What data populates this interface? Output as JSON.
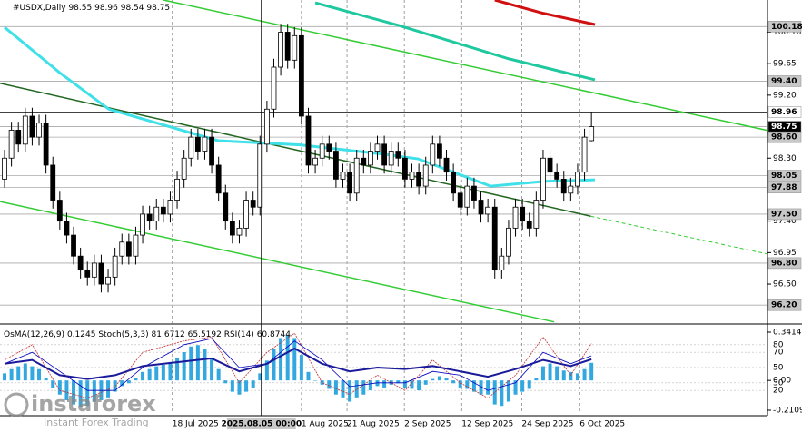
{
  "chart_data": {
    "type": "candlestick",
    "title": "#USDX,Daily",
    "candles": [
      [
        98.0,
        98.42,
        97.88,
        98.3
      ],
      [
        98.3,
        98.82,
        98.18,
        98.7
      ],
      [
        98.7,
        98.82,
        98.38,
        98.5
      ],
      [
        98.5,
        99.02,
        98.38,
        98.9
      ],
      [
        98.9,
        99.02,
        98.48,
        98.6
      ],
      [
        98.6,
        98.92,
        98.48,
        98.8
      ],
      [
        98.8,
        98.92,
        98.08,
        98.2
      ],
      [
        98.2,
        98.32,
        97.58,
        97.7
      ],
      [
        97.7,
        97.82,
        97.28,
        97.4
      ],
      [
        97.4,
        97.52,
        97.08,
        97.2
      ],
      [
        97.2,
        97.32,
        96.78,
        96.9
      ],
      [
        96.9,
        97.02,
        96.58,
        96.7
      ],
      [
        96.7,
        96.82,
        96.48,
        96.6
      ],
      [
        96.6,
        96.92,
        96.48,
        96.8
      ],
      [
        96.8,
        96.92,
        96.38,
        96.5
      ],
      [
        96.5,
        96.72,
        96.38,
        96.6
      ],
      [
        96.6,
        97.02,
        96.48,
        96.9
      ],
      [
        96.9,
        97.22,
        96.78,
        97.1
      ],
      [
        97.1,
        97.22,
        96.78,
        96.9
      ],
      [
        96.9,
        97.32,
        96.78,
        97.2
      ],
      [
        97.2,
        97.62,
        97.08,
        97.5
      ],
      [
        97.5,
        97.62,
        97.28,
        97.4
      ],
      [
        97.4,
        97.72,
        97.28,
        97.6
      ],
      [
        97.6,
        97.72,
        97.38,
        97.5
      ],
      [
        97.5,
        97.82,
        97.38,
        97.7
      ],
      [
        97.7,
        98.12,
        97.58,
        98.0
      ],
      [
        98.0,
        98.42,
        97.88,
        98.3
      ],
      [
        98.3,
        98.72,
        98.18,
        98.6
      ],
      [
        98.6,
        98.72,
        98.28,
        98.4
      ],
      [
        98.4,
        98.72,
        98.28,
        98.6
      ],
      [
        98.6,
        98.72,
        98.08,
        98.2
      ],
      [
        98.2,
        98.32,
        97.68,
        97.8
      ],
      [
        97.8,
        97.92,
        97.28,
        97.4
      ],
      [
        97.4,
        97.52,
        97.08,
        97.2
      ],
      [
        97.2,
        97.42,
        97.08,
        97.3
      ],
      [
        97.3,
        97.82,
        97.18,
        97.7
      ],
      [
        97.7,
        97.82,
        97.48,
        97.6
      ],
      [
        97.6,
        98.62,
        97.48,
        98.5
      ],
      [
        98.5,
        99.12,
        98.38,
        99.0
      ],
      [
        99.0,
        99.72,
        98.88,
        99.6
      ],
      [
        99.6,
        100.22,
        99.48,
        100.1
      ],
      [
        100.1,
        100.22,
        99.58,
        99.7
      ],
      [
        99.7,
        100.17,
        99.58,
        100.05
      ],
      [
        100.05,
        100.17,
        98.78,
        98.9
      ],
      [
        98.9,
        99.02,
        98.08,
        98.2
      ],
      [
        98.2,
        98.42,
        98.08,
        98.3
      ],
      [
        98.3,
        98.62,
        98.18,
        98.5
      ],
      [
        98.5,
        98.62,
        98.28,
        98.4
      ],
      [
        98.4,
        98.52,
        97.88,
        98.0
      ],
      [
        98.0,
        98.22,
        97.88,
        98.1
      ],
      [
        98.1,
        98.22,
        97.68,
        97.8
      ],
      [
        97.8,
        98.42,
        97.68,
        98.3
      ],
      [
        98.3,
        98.42,
        98.08,
        98.2
      ],
      [
        98.2,
        98.52,
        98.08,
        98.4
      ],
      [
        98.4,
        98.62,
        98.28,
        98.5
      ],
      [
        98.5,
        98.62,
        98.08,
        98.2
      ],
      [
        98.2,
        98.52,
        98.08,
        98.4
      ],
      [
        98.4,
        98.52,
        98.18,
        98.3
      ],
      [
        98.3,
        98.42,
        97.88,
        98.0
      ],
      [
        98.0,
        98.22,
        97.88,
        98.1
      ],
      [
        98.1,
        98.22,
        97.78,
        97.9
      ],
      [
        97.9,
        98.32,
        97.78,
        98.2
      ],
      [
        98.2,
        98.62,
        98.08,
        98.5
      ],
      [
        98.5,
        98.62,
        98.18,
        98.3
      ],
      [
        98.3,
        98.42,
        97.98,
        98.1
      ],
      [
        98.1,
        98.22,
        97.68,
        97.8
      ],
      [
        97.8,
        97.92,
        97.48,
        97.6
      ],
      [
        97.6,
        98.02,
        97.48,
        97.9
      ],
      [
        97.9,
        98.02,
        97.58,
        97.7
      ],
      [
        97.7,
        97.82,
        97.38,
        97.5
      ],
      [
        97.5,
        97.72,
        97.38,
        97.6
      ],
      [
        97.6,
        97.72,
        96.58,
        96.7
      ],
      [
        96.7,
        97.02,
        96.58,
        96.9
      ],
      [
        96.9,
        97.42,
        96.78,
        97.3
      ],
      [
        97.3,
        97.72,
        97.18,
        97.6
      ],
      [
        97.6,
        97.72,
        97.28,
        97.4
      ],
      [
        97.4,
        97.52,
        97.18,
        97.3
      ],
      [
        97.3,
        97.82,
        97.18,
        97.7
      ],
      [
        97.7,
        98.42,
        97.58,
        98.3
      ],
      [
        98.3,
        98.42,
        97.98,
        98.1
      ],
      [
        98.1,
        98.22,
        97.88,
        98.0
      ],
      [
        98.0,
        98.12,
        97.68,
        97.8
      ],
      [
        97.8,
        98.02,
        97.68,
        97.9
      ],
      [
        97.9,
        98.22,
        97.78,
        98.1
      ],
      [
        98.1,
        98.72,
        97.98,
        98.6
      ],
      [
        98.55,
        98.96,
        98.54,
        98.75
      ]
    ],
    "xlim": [
      -0.66,
      110.5
    ],
    "ylim": [
      95.93,
      100.56
    ],
    "yticks": [
      {
        "value": 100.1,
        "label": "100.10"
      },
      {
        "value": 99.65,
        "label": "99.65"
      },
      {
        "value": 99.2,
        "label": "99.20"
      },
      {
        "value": 98.3,
        "label": "98.30"
      },
      {
        "value": 97.4,
        "label": "97.40"
      },
      {
        "value": 96.95,
        "label": "96.95"
      },
      {
        "value": 96.5,
        "label": "96.50"
      }
    ],
    "price_labels": [
      {
        "value": 100.18,
        "label": "100.18",
        "color": "#c8c8c8"
      },
      {
        "value": 99.4,
        "label": "99.40",
        "color": "#c8c8c8"
      },
      {
        "value": 98.96,
        "label": "98.96",
        "color": "#ffffff"
      },
      {
        "value": 98.75,
        "label": "98.75",
        "color": "#000000"
      },
      {
        "value": 98.6,
        "label": "98.60",
        "color": "#c8c8c8"
      },
      {
        "value": 98.05,
        "label": "98.05",
        "color": "#c8c8c8"
      },
      {
        "value": 97.88,
        "label": "97.88",
        "color": "#c8c8c8"
      },
      {
        "value": 97.5,
        "label": "97.50",
        "color": "#c8c8c8"
      },
      {
        "value": 96.8,
        "label": "96.80",
        "color": "#c8c8c8"
      },
      {
        "value": 96.2,
        "label": "96.20",
        "color": "#c8c8c8"
      }
    ],
    "xticks": [
      {
        "value": 24.3,
        "label": "18 Jul 2025"
      },
      {
        "value": 43,
        "label": "1 Aug 2025"
      },
      {
        "value": 49.6,
        "label": "21 Aug 2025"
      },
      {
        "value": 57.9,
        "label": "2 Sep 2025"
      },
      {
        "value": 66.2,
        "label": "12 Sep 2025"
      },
      {
        "value": 74.9,
        "label": "24 Sep 2025"
      },
      {
        "value": 83.3,
        "label": "6 Oct 2025"
      }
    ],
    "cursor": {
      "value": 37.2,
      "label": "2025.08.05 00:00"
    },
    "ma": [
      {
        "color": "#40e0e8",
        "x": [
          0,
          8,
          15.1,
          30.9,
          42.8,
          54.6,
          59.9,
          70.4,
          78.3,
          85.5
        ],
        "values": [
          100.17,
          99.52,
          99.0,
          98.55,
          98.49,
          98.36,
          98.29,
          97.9,
          97.97,
          97.99
        ]
      },
      {
        "color": "#20c8a0",
        "x": [
          45,
          57,
          73,
          85.5
        ],
        "values": [
          100.52,
          100.2,
          99.72,
          99.42
        ]
      },
      {
        "color": "#d01010",
        "x": [
          71,
          78,
          85.5
        ],
        "values": [
          100.56,
          100.37,
          100.21
        ]
      }
    ],
    "trend_lines": [
      {
        "color": "#33cc33",
        "style": "solid",
        "x": [
          23,
          115.5
        ],
        "values": [
          100.56,
          98.59
        ]
      },
      {
        "color": "#226622",
        "style": "solid",
        "x": [
          -0.66,
          84.9
        ],
        "values": [
          99.37,
          97.47
        ]
      },
      {
        "color": "#33cc33",
        "style": "dashed",
        "x": [
          84.9,
          110.5
        ],
        "values": [
          97.47,
          96.93
        ]
      },
      {
        "color": "#33cc33",
        "style": "solid",
        "x": [
          -0.66,
          79.6
        ],
        "values": [
          97.68,
          95.96
        ]
      }
    ],
    "indicators": {
      "osma_label": "OsMA(12,26,9)",
      "stoch_label": "Stoch(5,3,3)",
      "rsi_label": "RSI(14)",
      "osma_lim": [
        -0.2109,
        0.3414
      ],
      "osma_ticks": [
        {
          "value": 0.3414,
          "label": "0.3414"
        },
        {
          "value": 0,
          "label": "0.00"
        },
        {
          "value": -0.2109,
          "label": "-0.2109"
        }
      ],
      "osc_lim": [
        0,
        100
      ],
      "osc_ticks": [
        80,
        70,
        50,
        30,
        20
      ],
      "osma": [
        0.05,
        0.08,
        0.1,
        0.12,
        0.1,
        0.08,
        0.02,
        -0.05,
        -0.1,
        -0.14,
        -0.17,
        -0.19,
        -0.18,
        -0.15,
        -0.14,
        -0.12,
        -0.08,
        -0.04,
        -0.02,
        0.02,
        0.06,
        0.08,
        0.1,
        0.11,
        0.13,
        0.16,
        0.2,
        0.24,
        0.25,
        0.22,
        0.16,
        0.08,
        -0.02,
        -0.08,
        -0.1,
        -0.08,
        -0.05,
        0.05,
        0.14,
        0.22,
        0.3,
        0.32,
        0.3,
        0.18,
        0.06,
        0.0,
        -0.03,
        -0.06,
        -0.1,
        -0.12,
        -0.15,
        -0.12,
        -0.1,
        -0.07,
        -0.04,
        -0.05,
        -0.03,
        -0.02,
        -0.05,
        -0.06,
        -0.07,
        -0.03,
        0.01,
        0.03,
        0.02,
        -0.02,
        -0.05,
        -0.06,
        -0.08,
        -0.1,
        -0.1,
        -0.17,
        -0.18,
        -0.15,
        -0.1,
        -0.08,
        -0.06,
        0.02,
        0.1,
        0.12,
        0.1,
        0.07,
        0.06,
        0.05,
        0.08,
        0.1245
      ],
      "osc_x": [
        0,
        4,
        8,
        12,
        16,
        20,
        26,
        30,
        34,
        38,
        42,
        46,
        50,
        54,
        58,
        62,
        66,
        70,
        74,
        78,
        82,
        85
      ],
      "stoch_main": [
        60,
        80,
        20,
        10,
        25,
        70,
        85,
        90,
        30,
        70,
        95,
        30,
        15,
        40,
        20,
        60,
        30,
        10,
        40,
        90,
        40,
        81.6712
      ],
      "stoch_signal": [
        55,
        70,
        45,
        20,
        20,
        50,
        80,
        88,
        50,
        55,
        85,
        60,
        25,
        30,
        30,
        45,
        40,
        20,
        30,
        70,
        55,
        65.5192
      ],
      "rsi": [
        55,
        60,
        40,
        35,
        40,
        52,
        58,
        62,
        45,
        55,
        75,
        55,
        45,
        50,
        48,
        52,
        45,
        38,
        48,
        60,
        52,
        60.8744
      ]
    },
    "watermark": {
      "brand": "instaforex",
      "tagline": "Instant Forex Trading"
    }
  }
}
